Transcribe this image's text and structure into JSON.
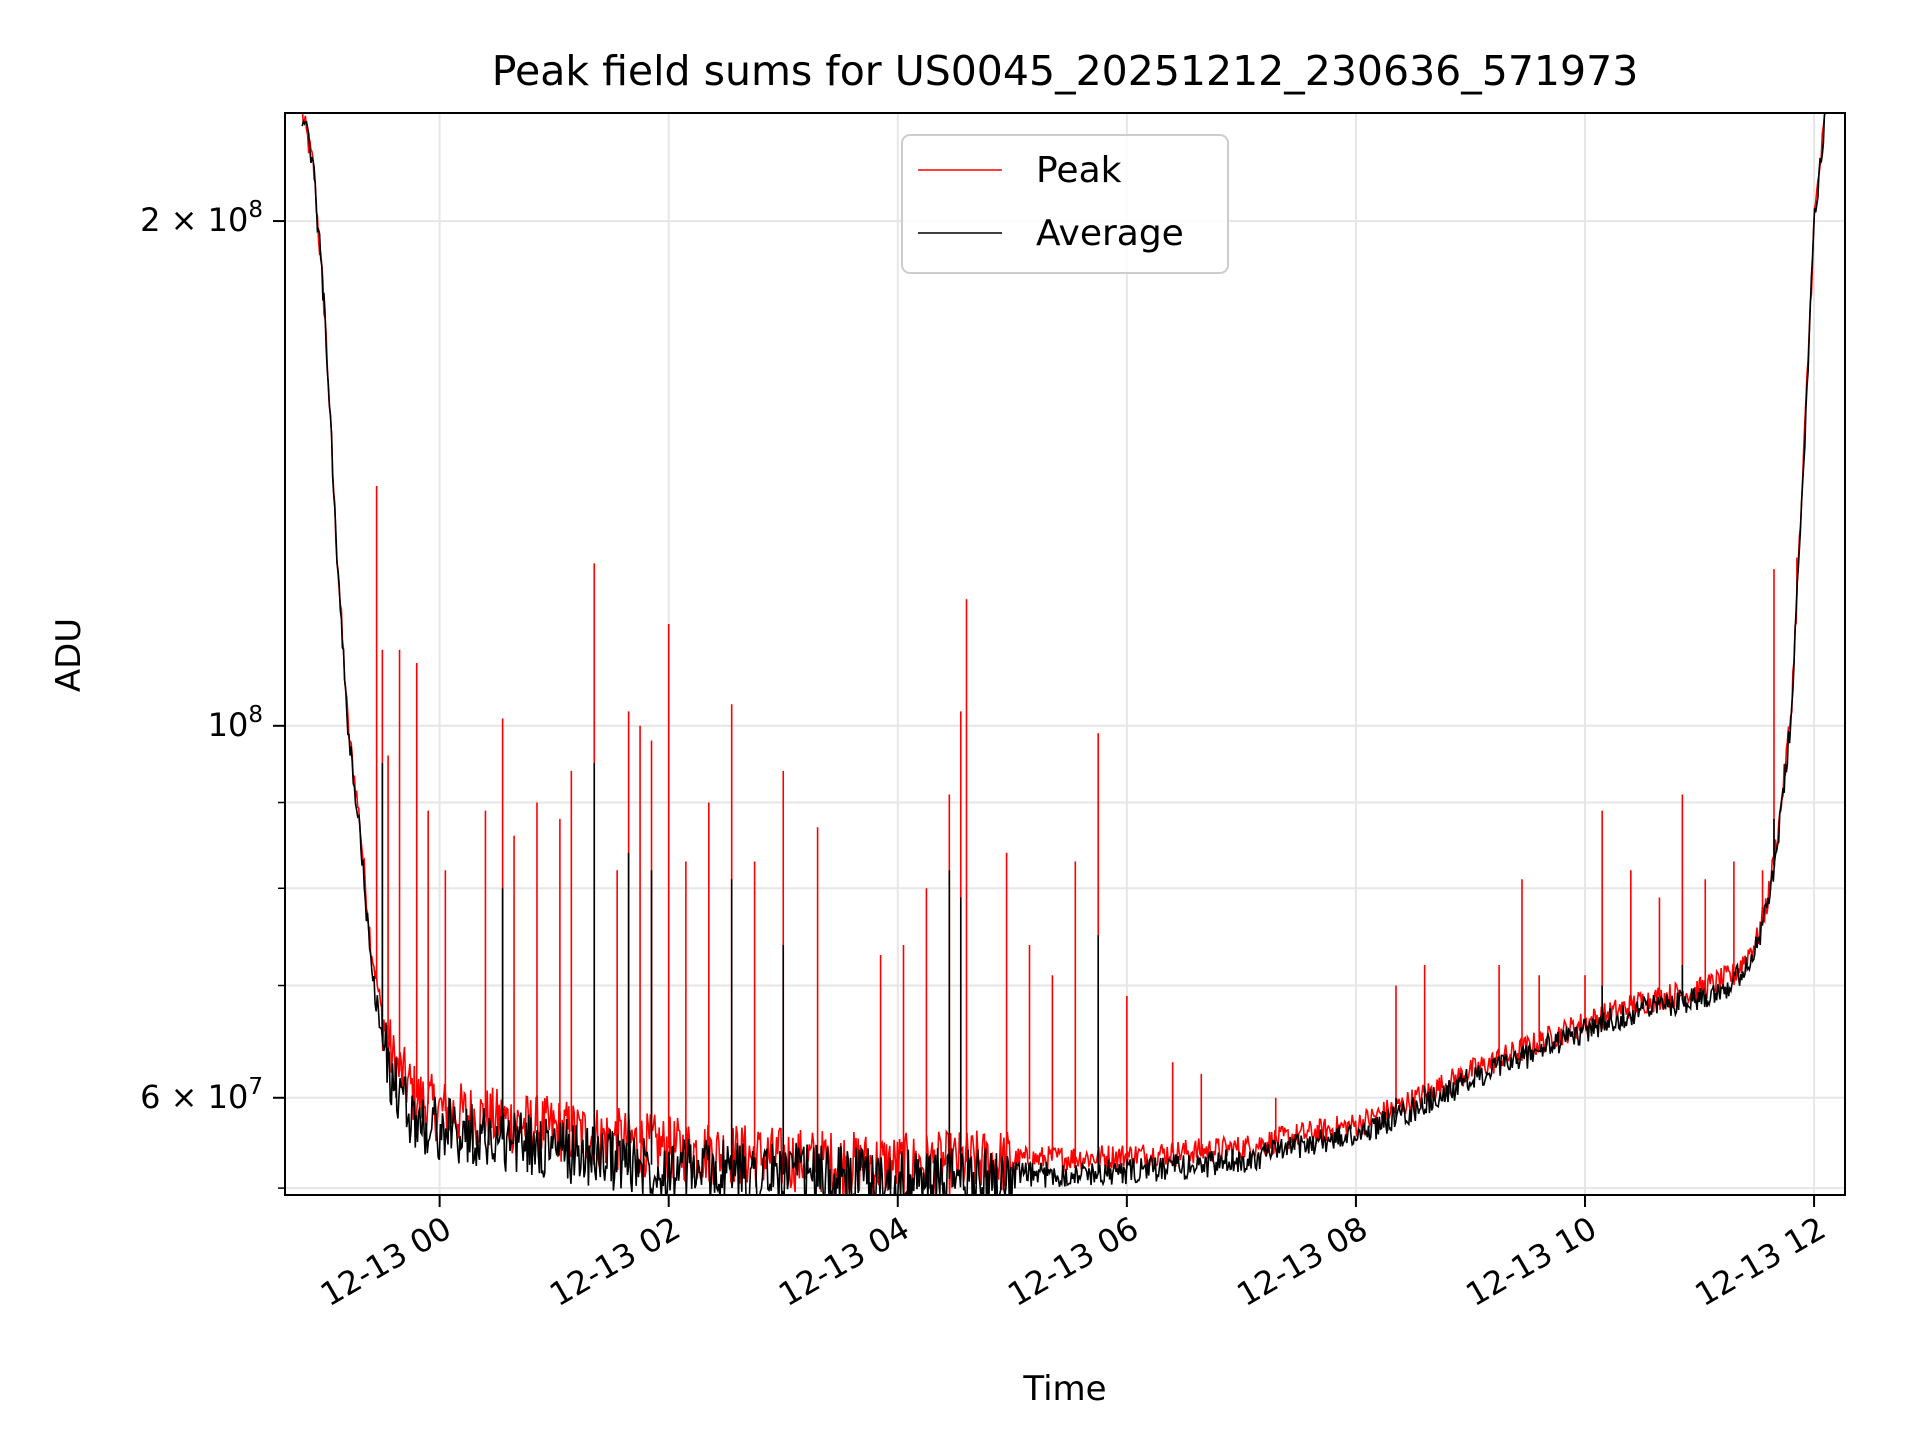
{
  "chart_data": {
    "type": "line",
    "title": "Peak field sums for US0045_20251212_230636_571973",
    "xlabel": "Time",
    "ylabel": "ADU",
    "yscale": "log",
    "grid": true,
    "legend_position": "top-center",
    "xlim_hours": [
      -1.35,
      12.27
    ],
    "ylim": [
      52500000,
      232000000
    ],
    "x_tick_hours": [
      0,
      2,
      4,
      6,
      8,
      10,
      12
    ],
    "x_tick_labels": [
      "12-13 00",
      "12-13 02",
      "12-13 04",
      "12-13 06",
      "12-13 08",
      "12-13 10",
      "12-13 12"
    ],
    "y_major_ticks": [
      {
        "value": 200000000,
        "mant": "2",
        "base": "10",
        "exp": "8"
      },
      {
        "value": 100000000,
        "mant": "",
        "base": "10",
        "exp": "8"
      },
      {
        "value": 60000000,
        "mant": "6",
        "base": "10",
        "exp": "7"
      }
    ],
    "y_minor_ticks": [
      90000000,
      80000000,
      70000000,
      53000000
    ],
    "series": [
      {
        "name": "Peak",
        "color": "#ff0000",
        "baseline": [
          [
            -1.2,
            232000000
          ],
          [
            -1.1,
            215000000
          ],
          [
            -1.0,
            175000000
          ],
          [
            -0.9,
            128000000
          ],
          [
            -0.8,
            100000000
          ],
          [
            -0.7,
            88000000
          ],
          [
            -0.6,
            74000000
          ],
          [
            -0.5,
            67000000
          ],
          [
            -0.4,
            63000000
          ],
          [
            -0.2,
            60000000
          ],
          [
            0,
            59000000
          ],
          [
            1,
            57500000
          ],
          [
            2,
            56000000
          ],
          [
            3,
            55200000
          ],
          [
            4,
            54700000
          ],
          [
            5,
            55100000
          ],
          [
            6,
            55400000
          ],
          [
            7,
            56000000
          ],
          [
            7.5,
            57000000
          ],
          [
            8,
            57800000
          ],
          [
            8.5,
            59800000
          ],
          [
            9,
            62200000
          ],
          [
            9.5,
            64300000
          ],
          [
            10,
            66500000
          ],
          [
            10.5,
            68500000
          ],
          [
            11,
            69600000
          ],
          [
            11.3,
            71000000
          ],
          [
            11.5,
            74500000
          ],
          [
            11.6,
            79000000
          ],
          [
            11.7,
            88000000
          ],
          [
            11.8,
            102000000
          ],
          [
            11.9,
            140000000
          ],
          [
            12.0,
            200000000
          ],
          [
            12.1,
            232000000
          ]
        ],
        "spikes": [
          [
            -0.55,
            139000000
          ],
          [
            -0.5,
            111000000
          ],
          [
            -0.45,
            96000000
          ],
          [
            -0.35,
            111000000
          ],
          [
            -0.2,
            109000000
          ],
          [
            -0.1,
            89000000
          ],
          [
            0.05,
            82000000
          ],
          [
            0.4,
            89000000
          ],
          [
            0.55,
            101000000
          ],
          [
            0.65,
            86000000
          ],
          [
            0.85,
            90000000
          ],
          [
            1.05,
            88000000
          ],
          [
            1.15,
            94000000
          ],
          [
            1.35,
            125000000
          ],
          [
            1.55,
            82000000
          ],
          [
            1.65,
            102000000
          ],
          [
            1.75,
            100000000
          ],
          [
            1.85,
            98000000
          ],
          [
            2.0,
            115000000
          ],
          [
            2.15,
            83000000
          ],
          [
            2.35,
            90000000
          ],
          [
            2.55,
            103000000
          ],
          [
            2.75,
            83000000
          ],
          [
            3.0,
            94000000
          ],
          [
            3.3,
            87000000
          ],
          [
            3.85,
            73000000
          ],
          [
            4.05,
            74000000
          ],
          [
            4.25,
            80000000
          ],
          [
            4.45,
            91000000
          ],
          [
            4.55,
            102000000
          ],
          [
            4.6,
            119000000
          ],
          [
            4.95,
            84000000
          ],
          [
            5.15,
            74000000
          ],
          [
            5.35,
            71000000
          ],
          [
            5.55,
            83000000
          ],
          [
            5.75,
            99000000
          ],
          [
            6.0,
            69000000
          ],
          [
            6.4,
            63000000
          ],
          [
            6.65,
            62000000
          ],
          [
            7.3,
            60000000
          ],
          [
            8.35,
            70000000
          ],
          [
            8.6,
            72000000
          ],
          [
            9.25,
            72000000
          ],
          [
            9.45,
            81000000
          ],
          [
            9.6,
            71000000
          ],
          [
            10.0,
            71000000
          ],
          [
            10.15,
            89000000
          ],
          [
            10.4,
            82000000
          ],
          [
            10.65,
            79000000
          ],
          [
            10.85,
            91000000
          ],
          [
            11.05,
            81000000
          ],
          [
            11.3,
            83000000
          ],
          [
            11.55,
            82000000
          ],
          [
            11.65,
            124000000
          ],
          [
            11.85,
            126000000
          ]
        ]
      },
      {
        "name": "Average",
        "color": "#000000",
        "baseline": [
          [
            -1.2,
            232000000
          ],
          [
            -1.1,
            215000000
          ],
          [
            -1.0,
            175000000
          ],
          [
            -0.9,
            128000000
          ],
          [
            -0.8,
            99000000
          ],
          [
            -0.7,
            87000000
          ],
          [
            -0.6,
            72000000
          ],
          [
            -0.5,
            65000000
          ],
          [
            -0.4,
            61000000
          ],
          [
            -0.2,
            58000000
          ],
          [
            0,
            57500000
          ],
          [
            1,
            56000000
          ],
          [
            2,
            54500000
          ],
          [
            3,
            54000000
          ],
          [
            4,
            53500000
          ],
          [
            5,
            53900000
          ],
          [
            6,
            54200000
          ],
          [
            7,
            55000000
          ],
          [
            7.5,
            56200000
          ],
          [
            8,
            57000000
          ],
          [
            8.5,
            59000000
          ],
          [
            9,
            61500000
          ],
          [
            9.5,
            63600000
          ],
          [
            10,
            65800000
          ],
          [
            10.5,
            67800000
          ],
          [
            11,
            68900000
          ],
          [
            11.3,
            70300000
          ],
          [
            11.5,
            73800000
          ],
          [
            11.6,
            78300000
          ],
          [
            11.7,
            87000000
          ],
          [
            11.8,
            101000000
          ],
          [
            11.9,
            139000000
          ],
          [
            12.0,
            200000000
          ],
          [
            12.1,
            232000000
          ]
        ],
        "spikes": [
          [
            -0.5,
            95000000
          ],
          [
            0.55,
            80000000
          ],
          [
            1.35,
            95000000
          ],
          [
            1.65,
            84000000
          ],
          [
            1.85,
            82000000
          ],
          [
            2.55,
            81000000
          ],
          [
            3.0,
            74000000
          ],
          [
            4.45,
            82000000
          ],
          [
            4.55,
            79000000
          ],
          [
            5.75,
            75000000
          ],
          [
            8.35,
            60000000
          ],
          [
            8.6,
            61000000
          ],
          [
            9.45,
            64000000
          ],
          [
            10.15,
            70000000
          ],
          [
            10.85,
            72000000
          ],
          [
            11.65,
            88000000
          ]
        ]
      }
    ]
  }
}
